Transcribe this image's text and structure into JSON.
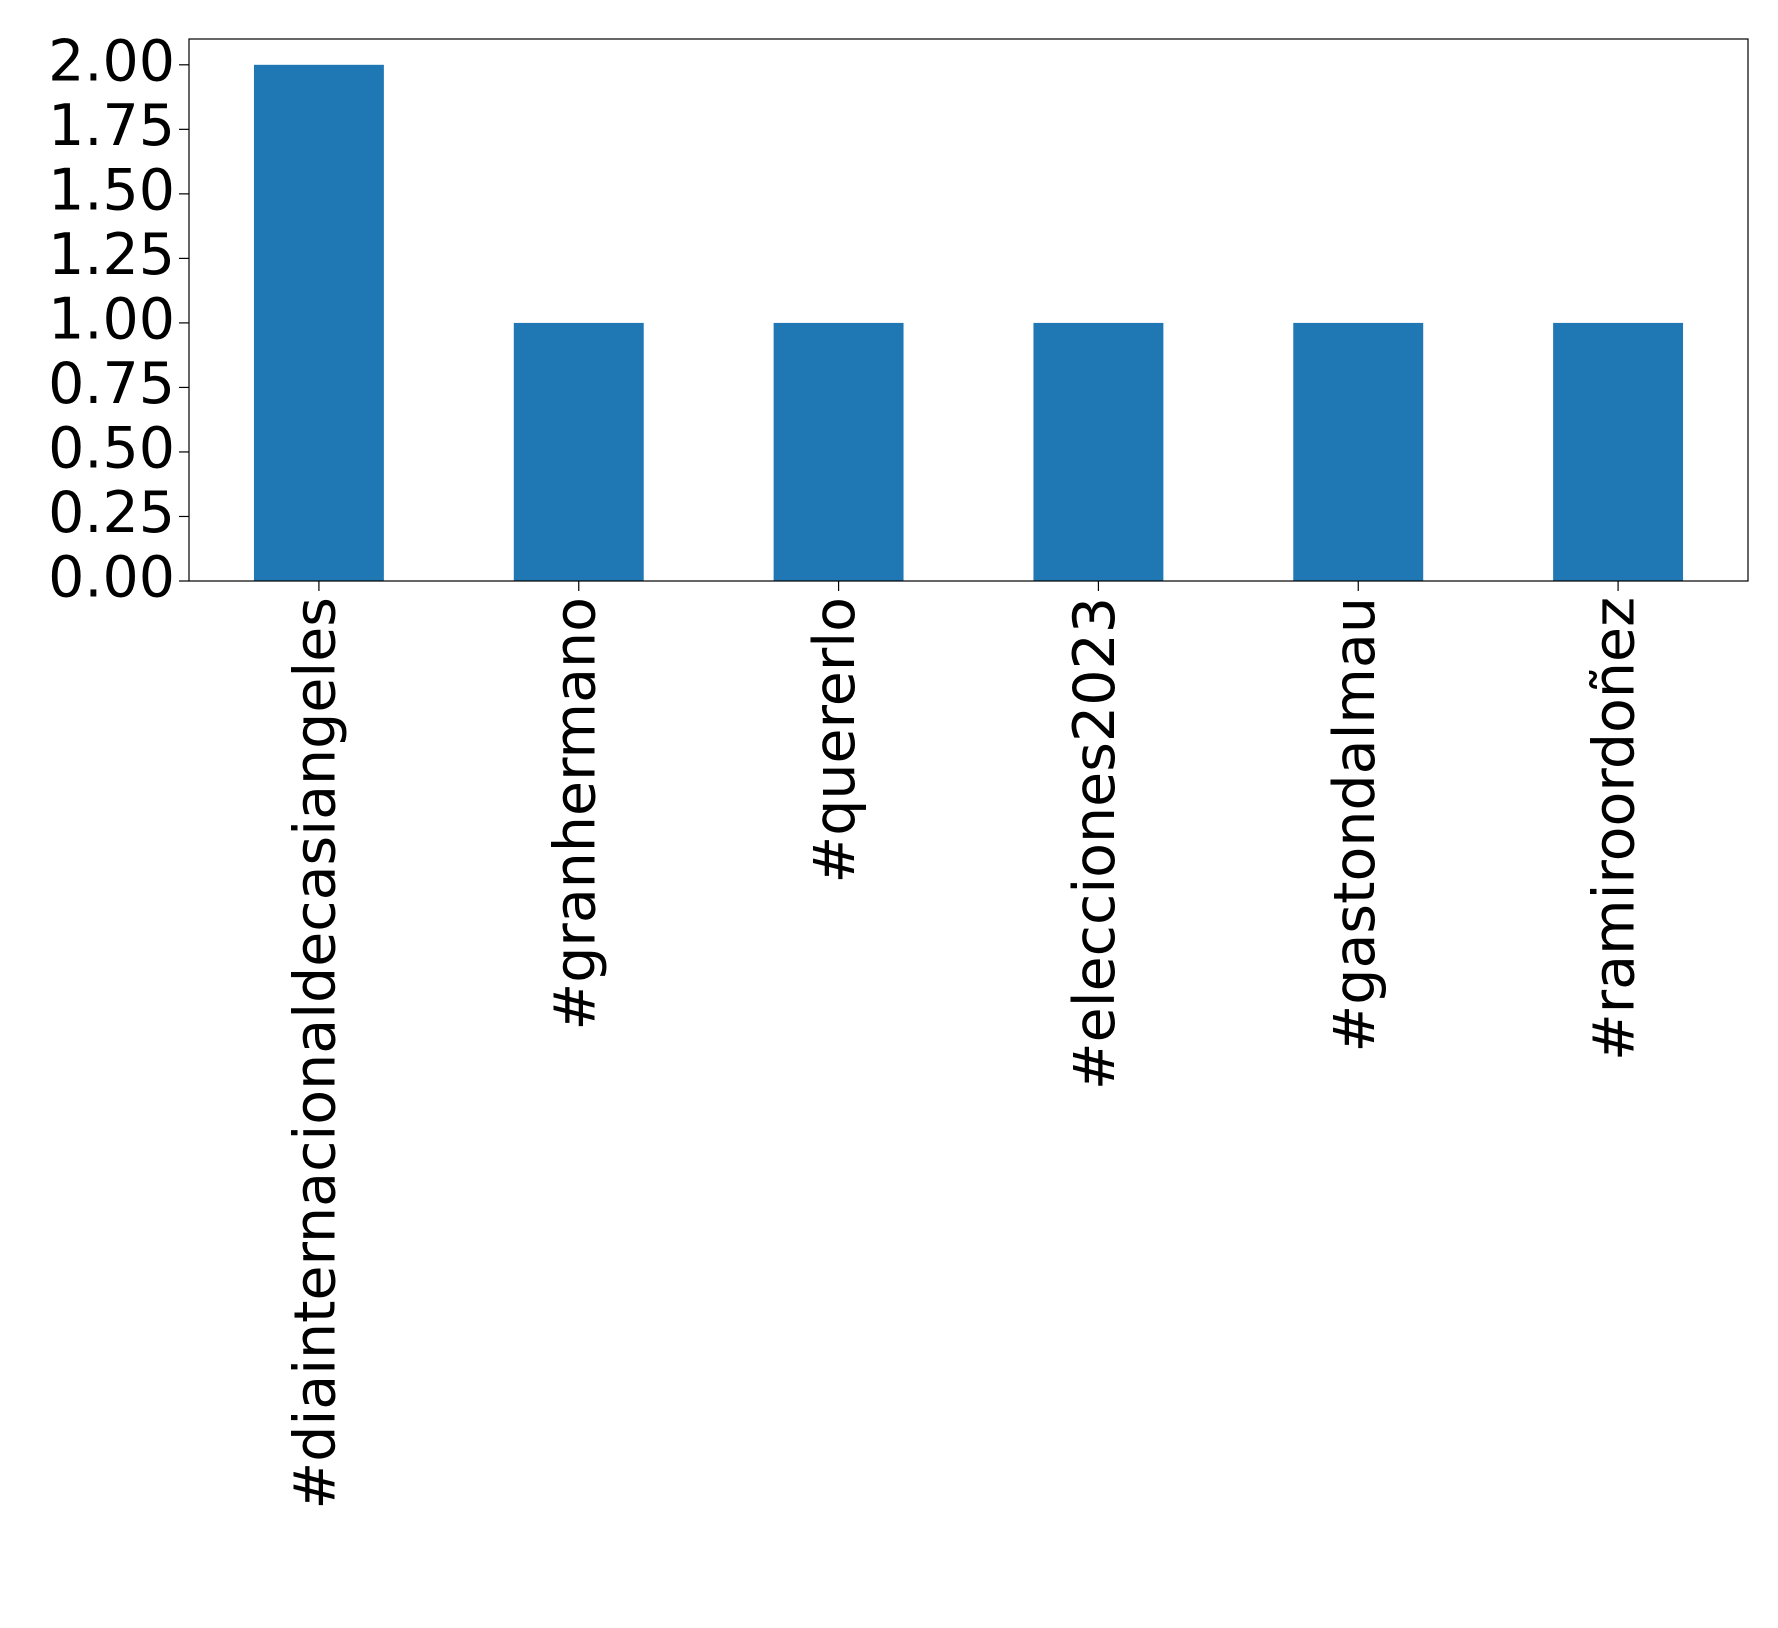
{
  "chart_data": {
    "type": "bar",
    "categories": [
      "#diainternacionaldecasiangeles",
      "#granhermano",
      "#quererlo",
      "#elecciones2023",
      "#gastondalmau",
      "#ramiroordoñez"
    ],
    "values": [
      2,
      1,
      1,
      1,
      1,
      1
    ],
    "color": "#1f77b4",
    "ylim": [
      0,
      2.1
    ],
    "yticks": [
      {
        "value": 0,
        "label": "0.00"
      },
      {
        "value": 0.25,
        "label": "0.25"
      },
      {
        "value": 0.5,
        "label": "0.50"
      },
      {
        "value": 0.75,
        "label": "0.75"
      },
      {
        "value": 1,
        "label": "1.00"
      },
      {
        "value": 1.25,
        "label": "1.25"
      },
      {
        "value": 1.5,
        "label": "1.50"
      },
      {
        "value": 1.75,
        "label": "1.75"
      },
      {
        "value": 2,
        "label": "2.00"
      }
    ],
    "grid": false
  }
}
